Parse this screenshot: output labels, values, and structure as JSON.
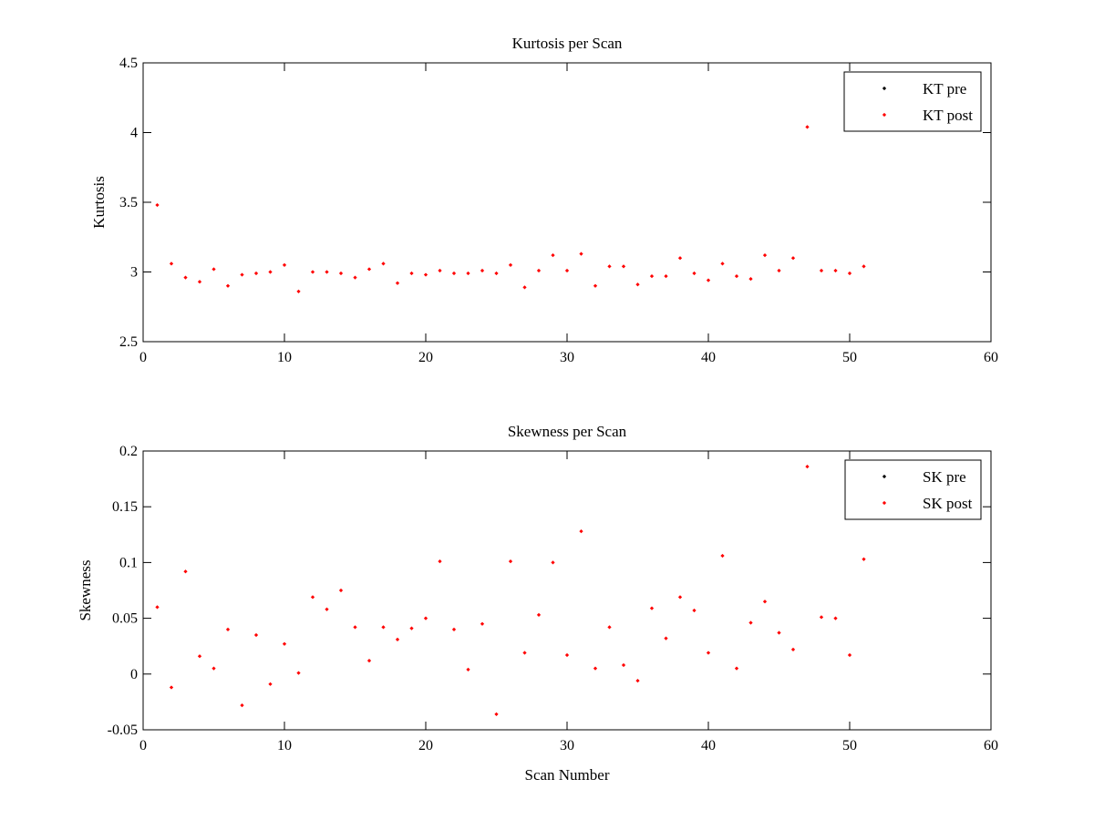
{
  "colors": {
    "pre": "#000000",
    "post": "#ff0000",
    "axes": "#000000",
    "background": "#ffffff"
  },
  "chart_data": [
    {
      "type": "scatter",
      "title": "Kurtosis per Scan",
      "xlabel": "",
      "ylabel": "Kurtosis",
      "xlim": [
        0,
        60
      ],
      "ylim": [
        2.5,
        4.5
      ],
      "xticks": [
        0,
        10,
        20,
        30,
        40,
        50,
        60
      ],
      "xtick_labels": [
        "0",
        "10",
        "20",
        "30",
        "40",
        "50",
        "60"
      ],
      "yticks": [
        2.5,
        3,
        3.5,
        4,
        4.5
      ],
      "ytick_labels": [
        "2.5",
        "3",
        "3.5",
        "4",
        "4.5"
      ],
      "grid": false,
      "legend_position": "top-right",
      "series": [
        {
          "name": "KT pre",
          "color": "#000000",
          "x": [],
          "y": []
        },
        {
          "name": "KT post",
          "color": "#ff0000",
          "x": [
            1,
            2,
            3,
            4,
            5,
            6,
            7,
            8,
            9,
            10,
            11,
            12,
            13,
            14,
            15,
            16,
            17,
            18,
            19,
            20,
            21,
            22,
            23,
            24,
            25,
            26,
            27,
            28,
            29,
            30,
            31,
            32,
            33,
            34,
            35,
            36,
            37,
            38,
            39,
            40,
            41,
            42,
            43,
            44,
            45,
            46,
            47,
            48,
            49,
            50,
            51
          ],
          "y": [
            3.48,
            3.06,
            2.96,
            2.93,
            3.02,
            2.9,
            2.98,
            2.99,
            3.0,
            3.05,
            2.86,
            3.0,
            3.0,
            2.99,
            2.96,
            3.02,
            3.06,
            2.92,
            2.99,
            2.98,
            3.01,
            2.99,
            2.99,
            3.01,
            2.99,
            3.05,
            2.89,
            3.01,
            3.12,
            3.01,
            3.13,
            2.9,
            3.04,
            3.04,
            2.91,
            2.97,
            2.97,
            3.1,
            2.99,
            2.94,
            3.06,
            2.97,
            2.95,
            3.12,
            3.01,
            3.1,
            4.04,
            3.01,
            3.01,
            2.99,
            3.04
          ]
        }
      ]
    },
    {
      "type": "scatter",
      "title": "Skewness per Scan",
      "xlabel": "Scan Number",
      "ylabel": "Skewness",
      "xlim": [
        0,
        60
      ],
      "ylim": [
        -0.05,
        0.2
      ],
      "xticks": [
        0,
        10,
        20,
        30,
        40,
        50,
        60
      ],
      "xtick_labels": [
        "0",
        "10",
        "20",
        "30",
        "40",
        "50",
        "60"
      ],
      "yticks": [
        -0.05,
        0,
        0.05,
        0.1,
        0.15,
        0.2
      ],
      "ytick_labels": [
        "-0.05",
        "0",
        "0.05",
        "0.1",
        "0.15",
        "0.2"
      ],
      "grid": false,
      "legend_position": "top-right",
      "series": [
        {
          "name": "SK pre",
          "color": "#000000",
          "x": [],
          "y": []
        },
        {
          "name": "SK post",
          "color": "#ff0000",
          "x": [
            1,
            2,
            3,
            4,
            5,
            6,
            7,
            8,
            9,
            10,
            11,
            12,
            13,
            14,
            15,
            16,
            17,
            18,
            19,
            20,
            21,
            22,
            23,
            24,
            25,
            26,
            27,
            28,
            29,
            30,
            31,
            32,
            33,
            34,
            35,
            36,
            37,
            38,
            39,
            40,
            41,
            42,
            43,
            44,
            45,
            46,
            47,
            48,
            49,
            50,
            51
          ],
          "y": [
            0.06,
            -0.012,
            0.092,
            0.016,
            0.005,
            0.04,
            -0.028,
            0.035,
            -0.009,
            0.027,
            0.001,
            0.069,
            0.058,
            0.075,
            0.042,
            0.012,
            0.042,
            0.031,
            0.041,
            0.05,
            0.101,
            0.04,
            0.004,
            0.045,
            -0.036,
            0.101,
            0.019,
            0.053,
            0.1,
            0.017,
            0.128,
            0.005,
            0.042,
            0.008,
            -0.006,
            0.059,
            0.032,
            0.069,
            0.057,
            0.019,
            0.106,
            0.005,
            0.046,
            0.065,
            0.037,
            0.022,
            0.186,
            0.051,
            0.05,
            0.017,
            0.103
          ]
        }
      ]
    }
  ]
}
